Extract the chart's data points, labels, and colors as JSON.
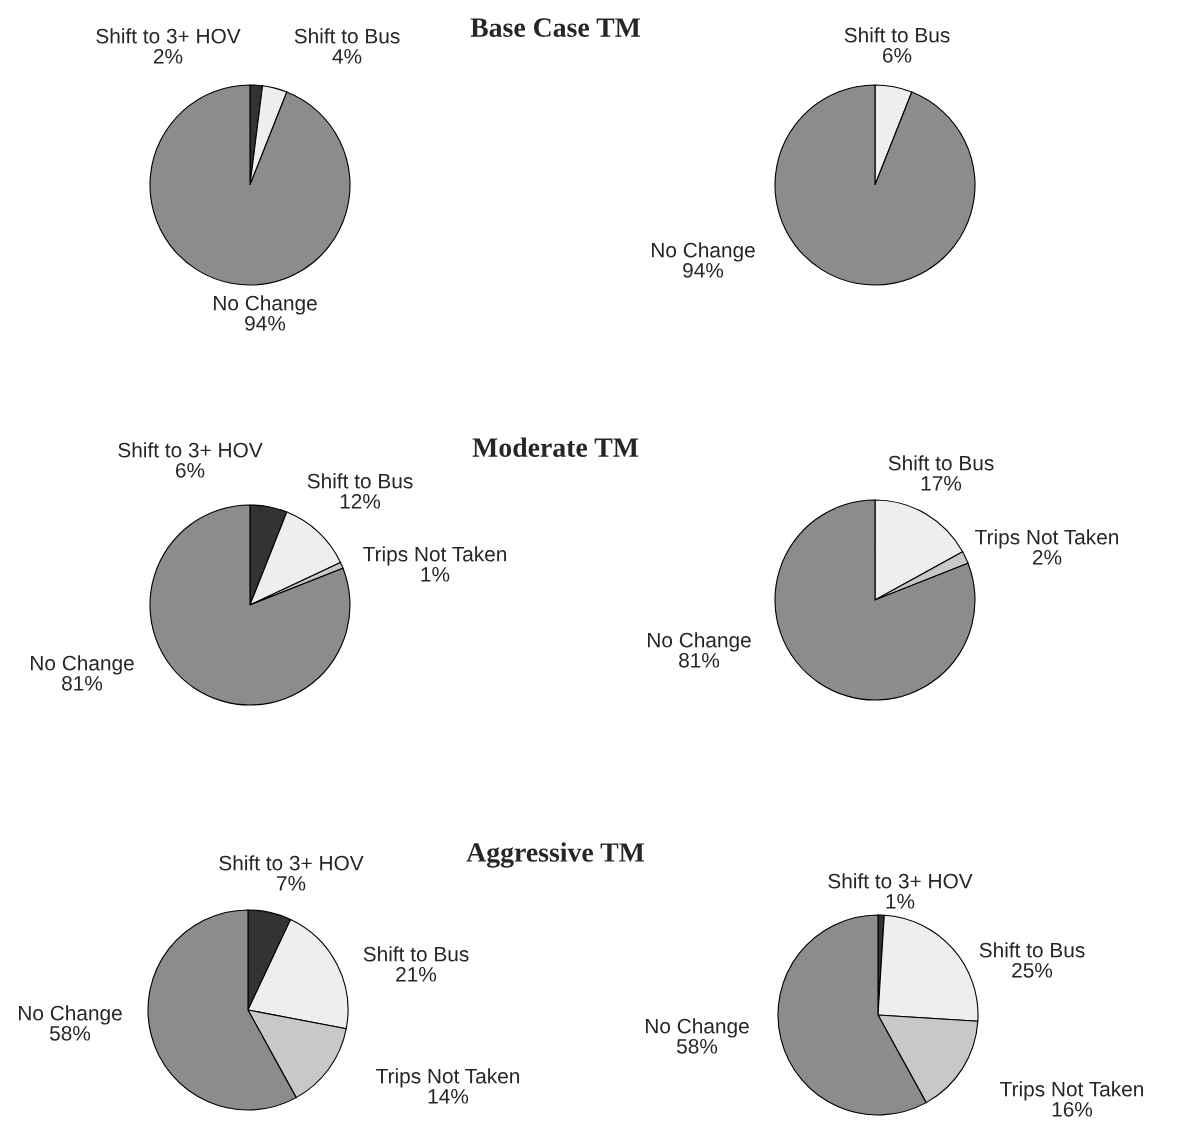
{
  "chart_data": [
    {
      "type": "pie",
      "title": "Base Case TM",
      "categories": [
        "Shift to 3+ HOV",
        "Shift to Bus",
        "No Change"
      ],
      "values": [
        2,
        4,
        94
      ],
      "value_labels": [
        "2%",
        "4%",
        "94%"
      ],
      "colors": [
        "#333333",
        "#eeeeee",
        "#8c8c8c"
      ]
    },
    {
      "type": "pie",
      "categories": [
        "Shift to Bus",
        "No Change"
      ],
      "values": [
        6,
        94
      ],
      "value_labels": [
        "6%",
        "94%"
      ],
      "colors": [
        "#eeeeee",
        "#8c8c8c"
      ]
    },
    {
      "type": "pie",
      "title": "Moderate TM",
      "categories": [
        "Shift to 3+ HOV",
        "Shift to Bus",
        "Trips Not Taken",
        "No Change"
      ],
      "values": [
        6,
        12,
        1,
        81
      ],
      "value_labels": [
        "6%",
        "12%",
        "1%",
        "81%"
      ],
      "colors": [
        "#333333",
        "#eeeeee",
        "#c8c8c8",
        "#8c8c8c"
      ]
    },
    {
      "type": "pie",
      "categories": [
        "Shift to Bus",
        "Trips Not Taken",
        "No Change"
      ],
      "values": [
        17,
        2,
        81
      ],
      "value_labels": [
        "17%",
        "2%",
        "81%"
      ],
      "colors": [
        "#eeeeee",
        "#c8c8c8",
        "#8c8c8c"
      ]
    },
    {
      "type": "pie",
      "title": "Aggressive TM",
      "categories": [
        "Shift to 3+ HOV",
        "Shift to Bus",
        "Trips Not Taken",
        "No Change"
      ],
      "values": [
        7,
        21,
        14,
        58
      ],
      "value_labels": [
        "7%",
        "21%",
        "14%",
        "58%"
      ],
      "colors": [
        "#333333",
        "#eeeeee",
        "#c8c8c8",
        "#8c8c8c"
      ]
    },
    {
      "type": "pie",
      "categories": [
        "Shift to 3+ HOV",
        "Shift to Bus",
        "Trips Not Taken",
        "No Change"
      ],
      "values": [
        1,
        25,
        16,
        58
      ],
      "value_labels": [
        "1%",
        "25%",
        "16%",
        "58%"
      ],
      "colors": [
        "#333333",
        "#eeeeee",
        "#c8c8c8",
        "#8c8c8c"
      ]
    }
  ]
}
